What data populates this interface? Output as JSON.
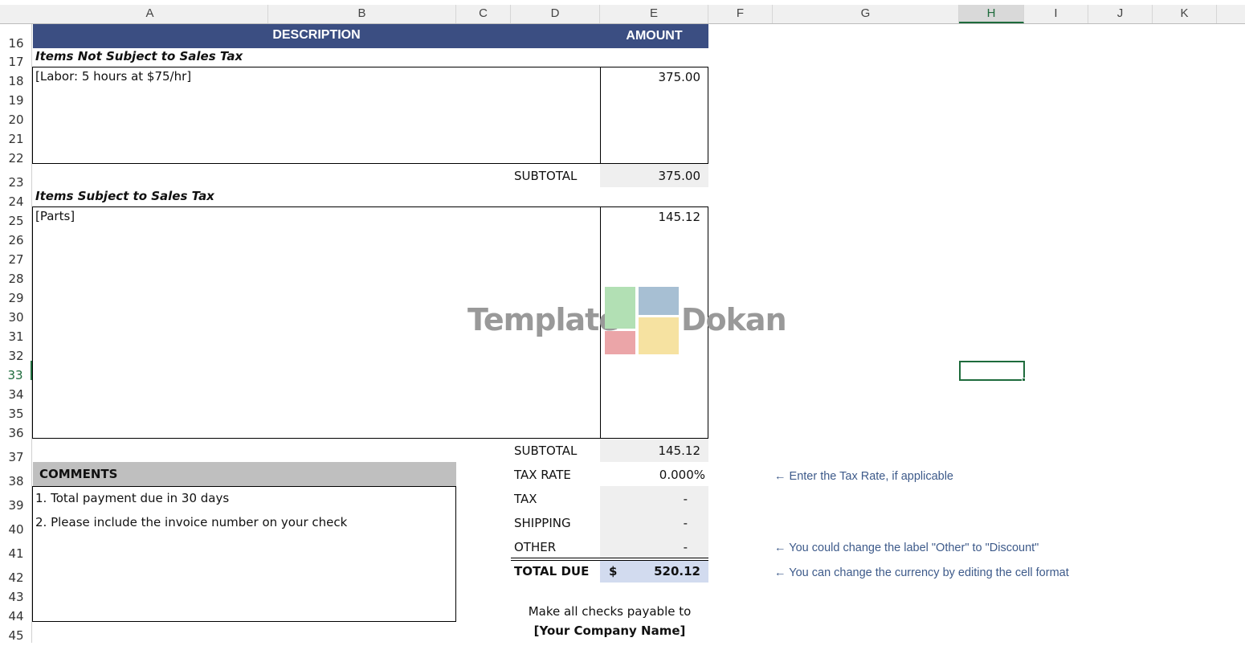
{
  "spreadsheet": {
    "columns": [
      "A",
      "B",
      "C",
      "D",
      "E",
      "F",
      "G",
      "H",
      "I",
      "J",
      "K"
    ],
    "selected_column": "H",
    "rows": [
      "16",
      "17",
      "18",
      "19",
      "20",
      "21",
      "22",
      "23",
      "24",
      "25",
      "26",
      "27",
      "28",
      "29",
      "30",
      "31",
      "32",
      "33",
      "34",
      "35",
      "36",
      "37",
      "38",
      "39",
      "40",
      "41",
      "42",
      "43",
      "44",
      "45"
    ],
    "selected_row": "33",
    "selected_cell": "H33"
  },
  "invoice": {
    "header": {
      "description": "DESCRIPTION",
      "amount": "AMOUNT",
      "color": "#3b4e82"
    },
    "non_taxable": {
      "title": "Items Not Subject to Sales Tax",
      "item": "[Labor: 5 hours at $75/hr]",
      "amount": "375.00",
      "subtotal_label": "SUBTOTAL",
      "subtotal": "375.00"
    },
    "taxable": {
      "title": "Items Subject to Sales Tax",
      "item": "[Parts]",
      "amount": "145.12",
      "subtotal_label": "SUBTOTAL",
      "subtotal": "145.12"
    },
    "totals": {
      "tax_rate_label": "TAX RATE",
      "tax_rate": "0.000%",
      "tax_label": "TAX",
      "tax": "-",
      "shipping_label": "SHIPPING",
      "shipping": "-",
      "other_label": "OTHER",
      "other": "-",
      "total_label": "TOTAL DUE",
      "currency": "$",
      "total": "520.12"
    },
    "comments": {
      "title": "COMMENTS",
      "lines": [
        "1. Total payment due in 30 days",
        "2. Please include the invoice number on your check"
      ]
    },
    "payable": {
      "line1": "Make all checks payable to",
      "line2": "[Your Company Name]"
    }
  },
  "notes": {
    "tax_rate": "← Enter the Tax Rate, if applicable",
    "other": "← You could change the label \"Other\" to \"Discount\"",
    "currency": "← You can change the currency by editing the cell format"
  },
  "watermark": {
    "left": "Template",
    "right": "Dokan",
    "colors": [
      "#b2e0b4",
      "#a7bfd3",
      "#eba5a8",
      "#f6e2a1"
    ]
  }
}
